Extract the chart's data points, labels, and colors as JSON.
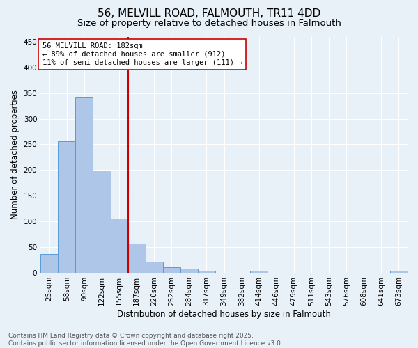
{
  "title": "56, MELVILL ROAD, FALMOUTH, TR11 4DD",
  "subtitle": "Size of property relative to detached houses in Falmouth",
  "xlabel": "Distribution of detached houses by size in Falmouth",
  "ylabel": "Number of detached properties",
  "categories": [
    "25sqm",
    "58sqm",
    "90sqm",
    "122sqm",
    "155sqm",
    "187sqm",
    "220sqm",
    "252sqm",
    "284sqm",
    "317sqm",
    "349sqm",
    "382sqm",
    "414sqm",
    "446sqm",
    "479sqm",
    "511sqm",
    "543sqm",
    "576sqm",
    "608sqm",
    "641sqm",
    "673sqm"
  ],
  "values": [
    36,
    256,
    342,
    199,
    105,
    57,
    21,
    11,
    8,
    4,
    0,
    0,
    4,
    0,
    0,
    0,
    0,
    0,
    0,
    0,
    4
  ],
  "bar_color": "#aec6e8",
  "bar_edge_color": "#5b9bd5",
  "vline_index": 5,
  "vline_color": "#cc0000",
  "annotation_text": "56 MELVILL ROAD: 182sqm\n← 89% of detached houses are smaller (912)\n11% of semi-detached houses are larger (111) →",
  "annotation_box_color": "#ffffff",
  "annotation_box_edge_color": "#cc0000",
  "footer_text": "Contains HM Land Registry data © Crown copyright and database right 2025.\nContains public sector information licensed under the Open Government Licence v3.0.",
  "ylim": [
    0,
    460
  ],
  "yticks": [
    0,
    50,
    100,
    150,
    200,
    250,
    300,
    350,
    400,
    450
  ],
  "background_color": "#e8f0f8",
  "grid_color": "#ffffff",
  "title_fontsize": 11,
  "subtitle_fontsize": 9.5,
  "axis_label_fontsize": 8.5,
  "tick_fontsize": 7.5,
  "annotation_fontsize": 7.5,
  "footer_fontsize": 6.5
}
